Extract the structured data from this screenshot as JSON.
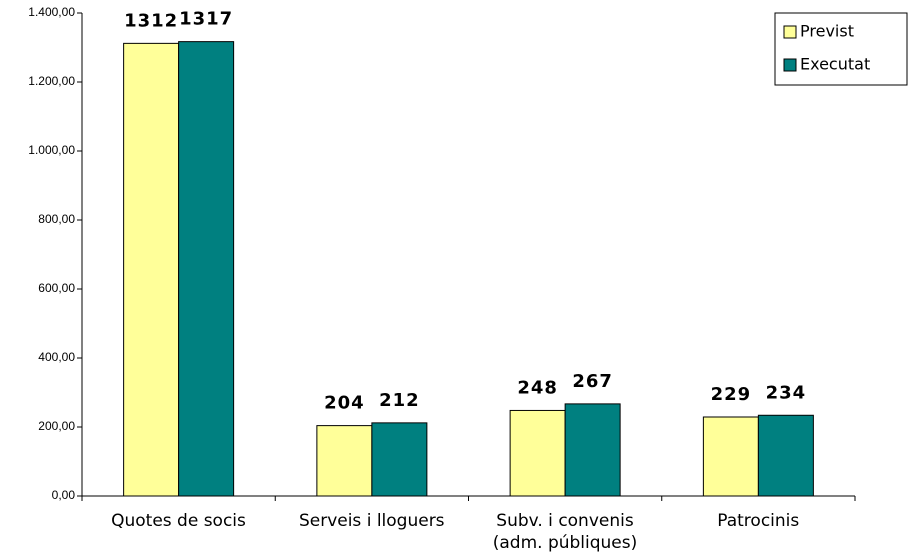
{
  "chart_data": {
    "type": "bar",
    "categories": [
      "Quotes de socis",
      "Serveis i lloguers",
      "Subv. i convenis\n(adm. públiques)",
      "Patrocinis"
    ],
    "series": [
      {
        "name": "Previst",
        "color": "#ffff99",
        "values": [
          1312,
          204,
          248,
          229
        ]
      },
      {
        "name": "Executat",
        "color": "#008080",
        "values": [
          1317,
          212,
          267,
          234
        ]
      }
    ],
    "ylim": [
      0,
      1400
    ],
    "yticks": [
      {
        "value": 0,
        "label": "0,00"
      },
      {
        "value": 200,
        "label": "200,00"
      },
      {
        "value": 400,
        "label": "400,00"
      },
      {
        "value": 600,
        "label": "600,00"
      },
      {
        "value": 800,
        "label": "800,00"
      },
      {
        "value": 1000,
        "label": "1.000,00"
      },
      {
        "value": 1200,
        "label": "1.200,00"
      },
      {
        "value": 1400,
        "label": "1.400,00"
      }
    ],
    "legend": "top-right"
  }
}
